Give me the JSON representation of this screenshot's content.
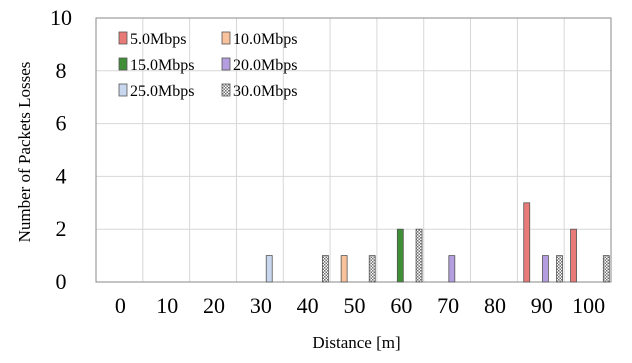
{
  "chart_data": {
    "type": "bar",
    "title": "",
    "xlabel": "Distance [m]",
    "ylabel": "Number of Packets Losses",
    "xlim": [
      -5,
      105
    ],
    "ylim": [
      0,
      10
    ],
    "x_ticks": [
      "0",
      "10",
      "20",
      "30",
      "40",
      "50",
      "60",
      "70",
      "80",
      "90",
      "100"
    ],
    "y_ticks": [
      "0",
      "2",
      "4",
      "6",
      "8",
      "10"
    ],
    "grid": "on",
    "legend_position": "top-left",
    "series": [
      {
        "name": "5.0Mbps",
        "color": "#e87a78",
        "points": [
          {
            "x": 87,
            "y": 3
          },
          {
            "x": 97,
            "y": 2
          }
        ]
      },
      {
        "name": "10.0Mbps",
        "color": "#f7c29c",
        "points": [
          {
            "x": 48,
            "y": 1
          }
        ]
      },
      {
        "name": "15.0Mbps",
        "color": "#3f8f37",
        "points": [
          {
            "x": 60,
            "y": 2
          }
        ]
      },
      {
        "name": "20.0Mbps",
        "color": "#b59ee0",
        "points": [
          {
            "x": 71,
            "y": 1
          },
          {
            "x": 91,
            "y": 1
          }
        ]
      },
      {
        "name": "25.0Mbps",
        "color": "#c9d7ee",
        "points": [
          {
            "x": 32,
            "y": 1
          }
        ]
      },
      {
        "name": "30.0Mbps",
        "color": "#9a9a9a",
        "pattern": "dotted",
        "points": [
          {
            "x": 44,
            "y": 1
          },
          {
            "x": 54,
            "y": 1
          },
          {
            "x": 64,
            "y": 2
          },
          {
            "x": 94,
            "y": 1
          },
          {
            "x": 104,
            "y": 1
          }
        ]
      }
    ]
  }
}
